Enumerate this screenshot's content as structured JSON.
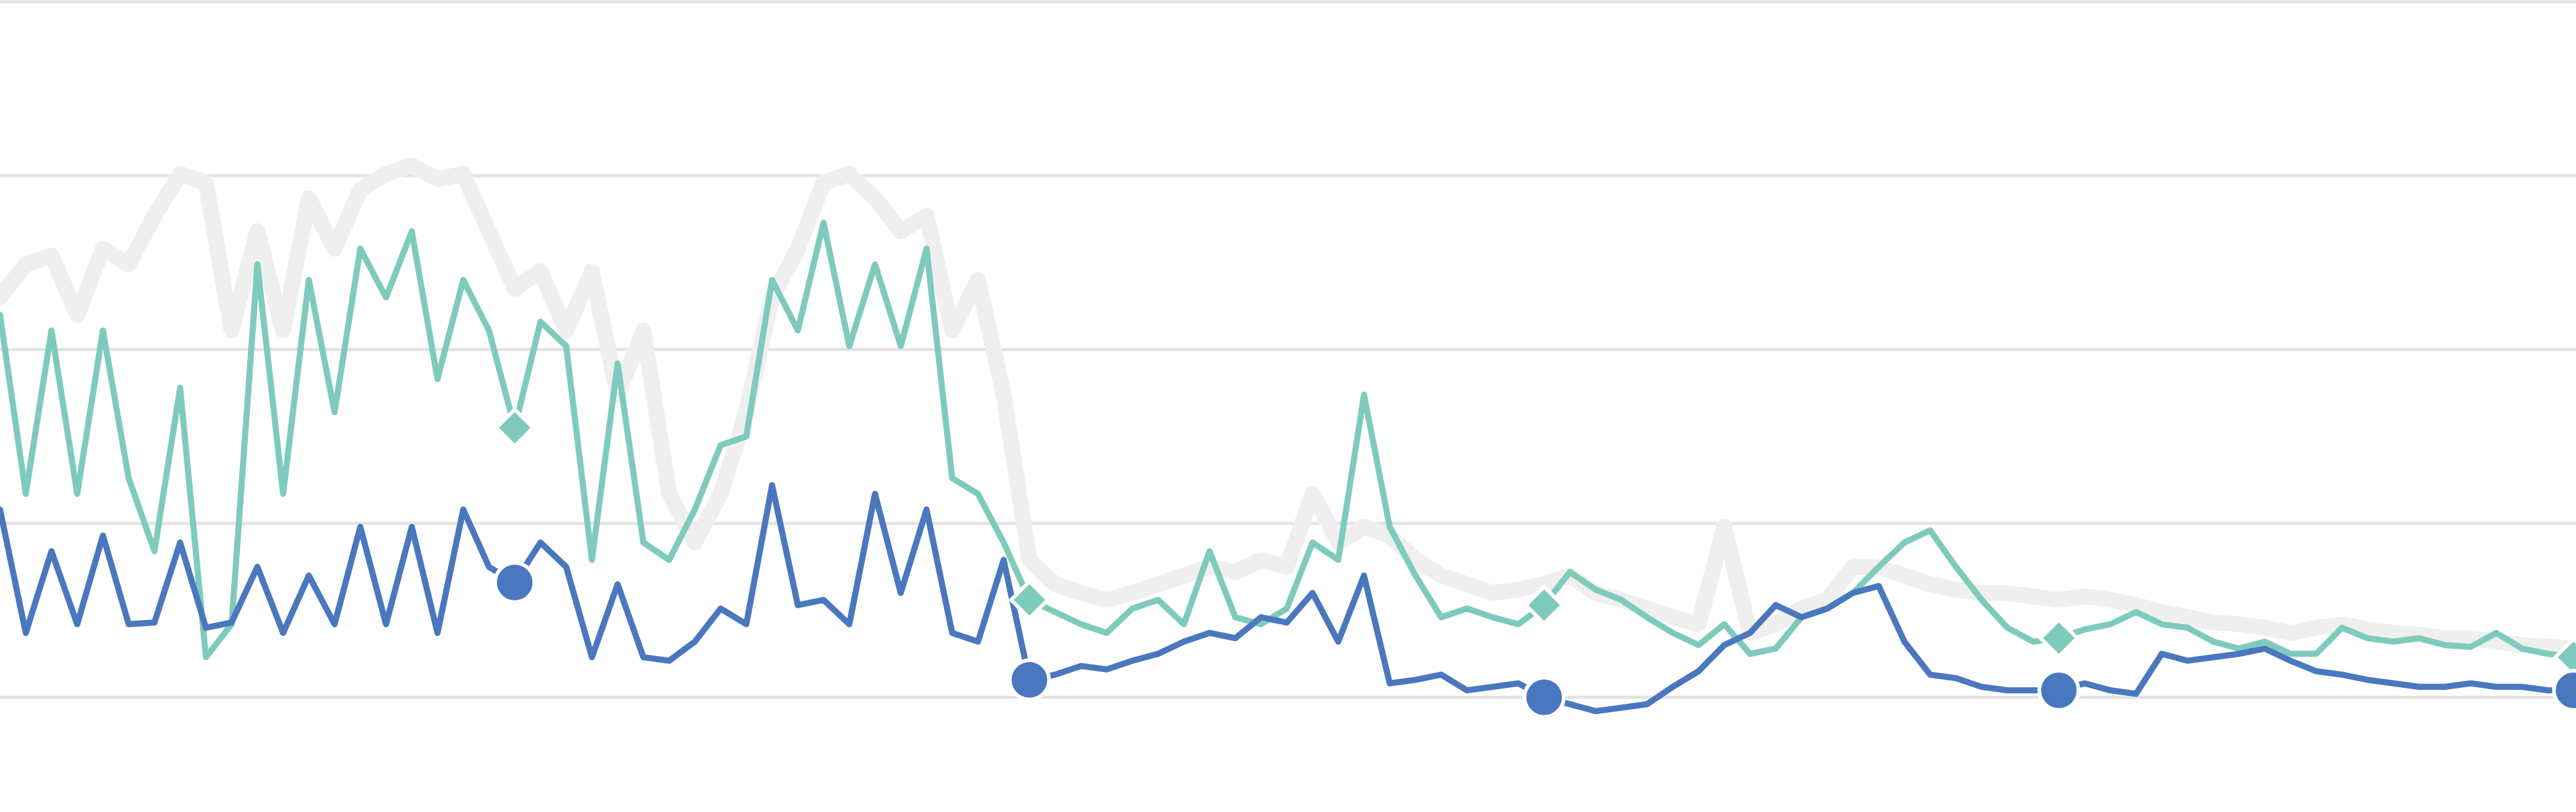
{
  "chart_data": {
    "type": "line",
    "x": [
      0,
      1,
      2,
      3,
      4,
      5,
      6,
      7,
      8,
      9,
      10,
      11,
      12,
      13,
      14,
      15,
      16,
      17,
      18,
      19,
      20,
      21,
      22,
      23,
      24,
      25,
      26,
      27,
      28,
      29,
      30,
      31,
      32,
      33,
      34,
      35,
      36,
      37,
      38,
      39,
      40,
      41,
      42,
      43,
      44,
      45,
      46,
      47,
      48,
      49,
      50,
      51,
      52,
      53,
      54,
      55,
      56,
      57,
      58,
      59,
      60,
      61,
      62,
      63,
      64,
      65,
      66,
      67,
      68,
      69,
      70,
      71,
      72,
      73,
      74,
      75,
      76,
      77,
      78,
      79,
      80,
      81,
      82,
      83,
      84,
      85,
      86,
      87,
      88,
      89,
      90,
      91,
      92,
      93,
      94,
      95,
      96,
      97,
      98,
      99,
      100
    ],
    "xlim": [
      0,
      100
    ],
    "ylim": [
      -0.66,
      4
    ],
    "yticks": [
      0,
      1,
      2,
      3,
      4
    ],
    "grid": true,
    "series": [
      {
        "color": "#efefef",
        "values": [
          2.3,
          2.49,
          2.54,
          2.2,
          2.58,
          2.49,
          2.77,
          3.01,
          2.96,
          2.11,
          2.68,
          2.11,
          2.87,
          2.58,
          2.92,
          3.01,
          3.06,
          2.98,
          3.01,
          2.68,
          2.35,
          2.45,
          2.11,
          2.45,
          1.74,
          2.11,
          1.17,
          0.89,
          1.17,
          1.64,
          2.3,
          2.58,
          2.96,
          3.01,
          2.87,
          2.68,
          2.77,
          2.11,
          2.4,
          1.74,
          0.79,
          0.65,
          0.6,
          0.56,
          0.6,
          0.65,
          0.7,
          0.75,
          0.72,
          0.79,
          0.75,
          1.17,
          0.89,
          0.98,
          0.93,
          0.79,
          0.7,
          0.65,
          0.6,
          0.62,
          0.65,
          0.7,
          0.6,
          0.56,
          0.51,
          0.46,
          0.42,
          0.98,
          0.37,
          0.42,
          0.51,
          0.56,
          0.75,
          0.75,
          0.7,
          0.65,
          0.62,
          0.6,
          0.6,
          0.58,
          0.56,
          0.58,
          0.56,
          0.53,
          0.49,
          0.46,
          0.43,
          0.42,
          0.4,
          0.37,
          0.4,
          0.42,
          0.39,
          0.37,
          0.36,
          0.34,
          0.34,
          0.32,
          0.3,
          0.29,
          0.28
        ]
      },
      {
        "color": "#7ecbbd",
        "marker": "diamond",
        "markevery": 20,
        "values": [
          2.2,
          1.17,
          2.11,
          1.17,
          2.11,
          1.26,
          0.84,
          1.78,
          0.23,
          0.42,
          2.49,
          1.17,
          2.4,
          1.64,
          2.58,
          2.3,
          2.68,
          1.83,
          2.4,
          2.11,
          1.55,
          2.16,
          2.02,
          0.79,
          1.92,
          0.89,
          0.79,
          1.08,
          1.45,
          1.5,
          2.4,
          2.11,
          2.73,
          2.02,
          2.49,
          2.02,
          2.58,
          1.26,
          1.17,
          0.89,
          0.56,
          0.49,
          0.42,
          0.37,
          0.51,
          0.56,
          0.42,
          0.84,
          0.46,
          0.42,
          0.51,
          0.89,
          0.79,
          1.74,
          0.98,
          0.7,
          0.46,
          0.51,
          0.46,
          0.42,
          0.53,
          0.72,
          0.62,
          0.56,
          0.46,
          0.37,
          0.3,
          0.42,
          0.25,
          0.28,
          0.46,
          0.51,
          0.6,
          0.75,
          0.89,
          0.96,
          0.75,
          0.56,
          0.4,
          0.32,
          0.34,
          0.39,
          0.42,
          0.49,
          0.42,
          0.4,
          0.32,
          0.28,
          0.32,
          0.25,
          0.25,
          0.4,
          0.34,
          0.32,
          0.34,
          0.3,
          0.29,
          0.37,
          0.28,
          0.25,
          0.23
        ]
      },
      {
        "color": "#4a78bf",
        "marker": "circle",
        "markevery": 20,
        "values": [
          1.08,
          0.37,
          0.84,
          0.42,
          0.93,
          0.42,
          0.43,
          0.89,
          0.4,
          0.43,
          0.75,
          0.37,
          0.7,
          0.42,
          0.98,
          0.42,
          0.98,
          0.37,
          1.08,
          0.75,
          0.66,
          0.89,
          0.75,
          0.23,
          0.65,
          0.23,
          0.21,
          0.32,
          0.51,
          0.42,
          1.22,
          0.53,
          0.56,
          0.42,
          1.17,
          0.6,
          1.08,
          0.37,
          0.32,
          0.79,
          0.1,
          0.13,
          0.18,
          0.16,
          0.21,
          0.25,
          0.32,
          0.37,
          0.34,
          0.46,
          0.43,
          0.6,
          0.32,
          0.7,
          0.08,
          0.1,
          0.13,
          0.04,
          0.06,
          0.08,
          0,
          -0.04,
          -0.08,
          -0.06,
          -0.04,
          0.06,
          0.15,
          0.3,
          0.37,
          0.53,
          0.46,
          0.51,
          0.6,
          0.64,
          0.32,
          0.13,
          0.11,
          0.06,
          0.04,
          0.04,
          0.04,
          0.08,
          0.04,
          0.02,
          0.25,
          0.21,
          0.23,
          0.25,
          0.28,
          0.21,
          0.15,
          0.13,
          0.1,
          0.08,
          0.06,
          0.06,
          0.08,
          0.06,
          0.06,
          0.04,
          0.04
        ]
      }
    ]
  }
}
